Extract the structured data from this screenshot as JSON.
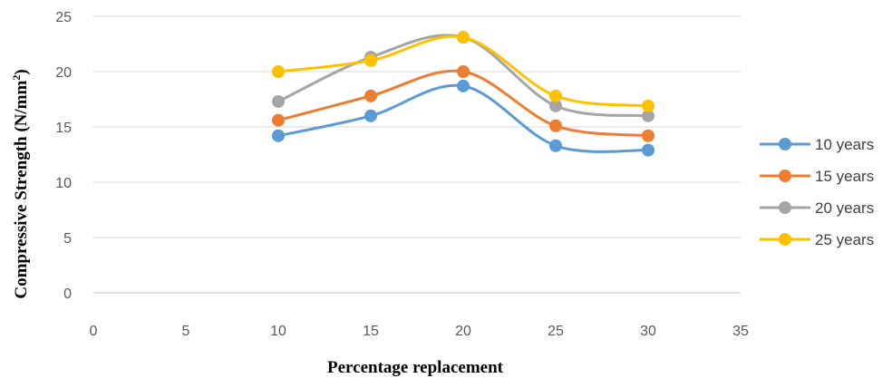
{
  "chart_data": {
    "type": "scatter",
    "xlabel": "Percentage replacement",
    "ylabel": {
      "main": "Compressive Strength (N/mm",
      "superscript": "2",
      "close": ")"
    },
    "xlim": [
      0,
      35
    ],
    "ylim": [
      0,
      25
    ],
    "x_ticks": [
      0,
      5,
      10,
      15,
      20,
      25,
      30,
      35
    ],
    "y_ticks": [
      0,
      5,
      10,
      15,
      20,
      25
    ],
    "grid": "horizontal",
    "legend_position": "right",
    "smooth_lines": true,
    "x": [
      10,
      15,
      20,
      25,
      30
    ],
    "series": [
      {
        "name": "10 years",
        "color": "#5B9BD5",
        "values": [
          14.2,
          16.0,
          18.7,
          13.3,
          12.9
        ]
      },
      {
        "name": "15 years",
        "color": "#ED7D31",
        "values": [
          15.6,
          17.8,
          20.0,
          15.1,
          14.2
        ]
      },
      {
        "name": "20 years",
        "color": "#A5A5A5",
        "values": [
          17.3,
          21.3,
          23.1,
          16.9,
          16.0
        ]
      },
      {
        "name": "25 years",
        "color": "#FFC000",
        "values": [
          20.0,
          21.0,
          23.1,
          17.8,
          16.9
        ]
      }
    ]
  }
}
